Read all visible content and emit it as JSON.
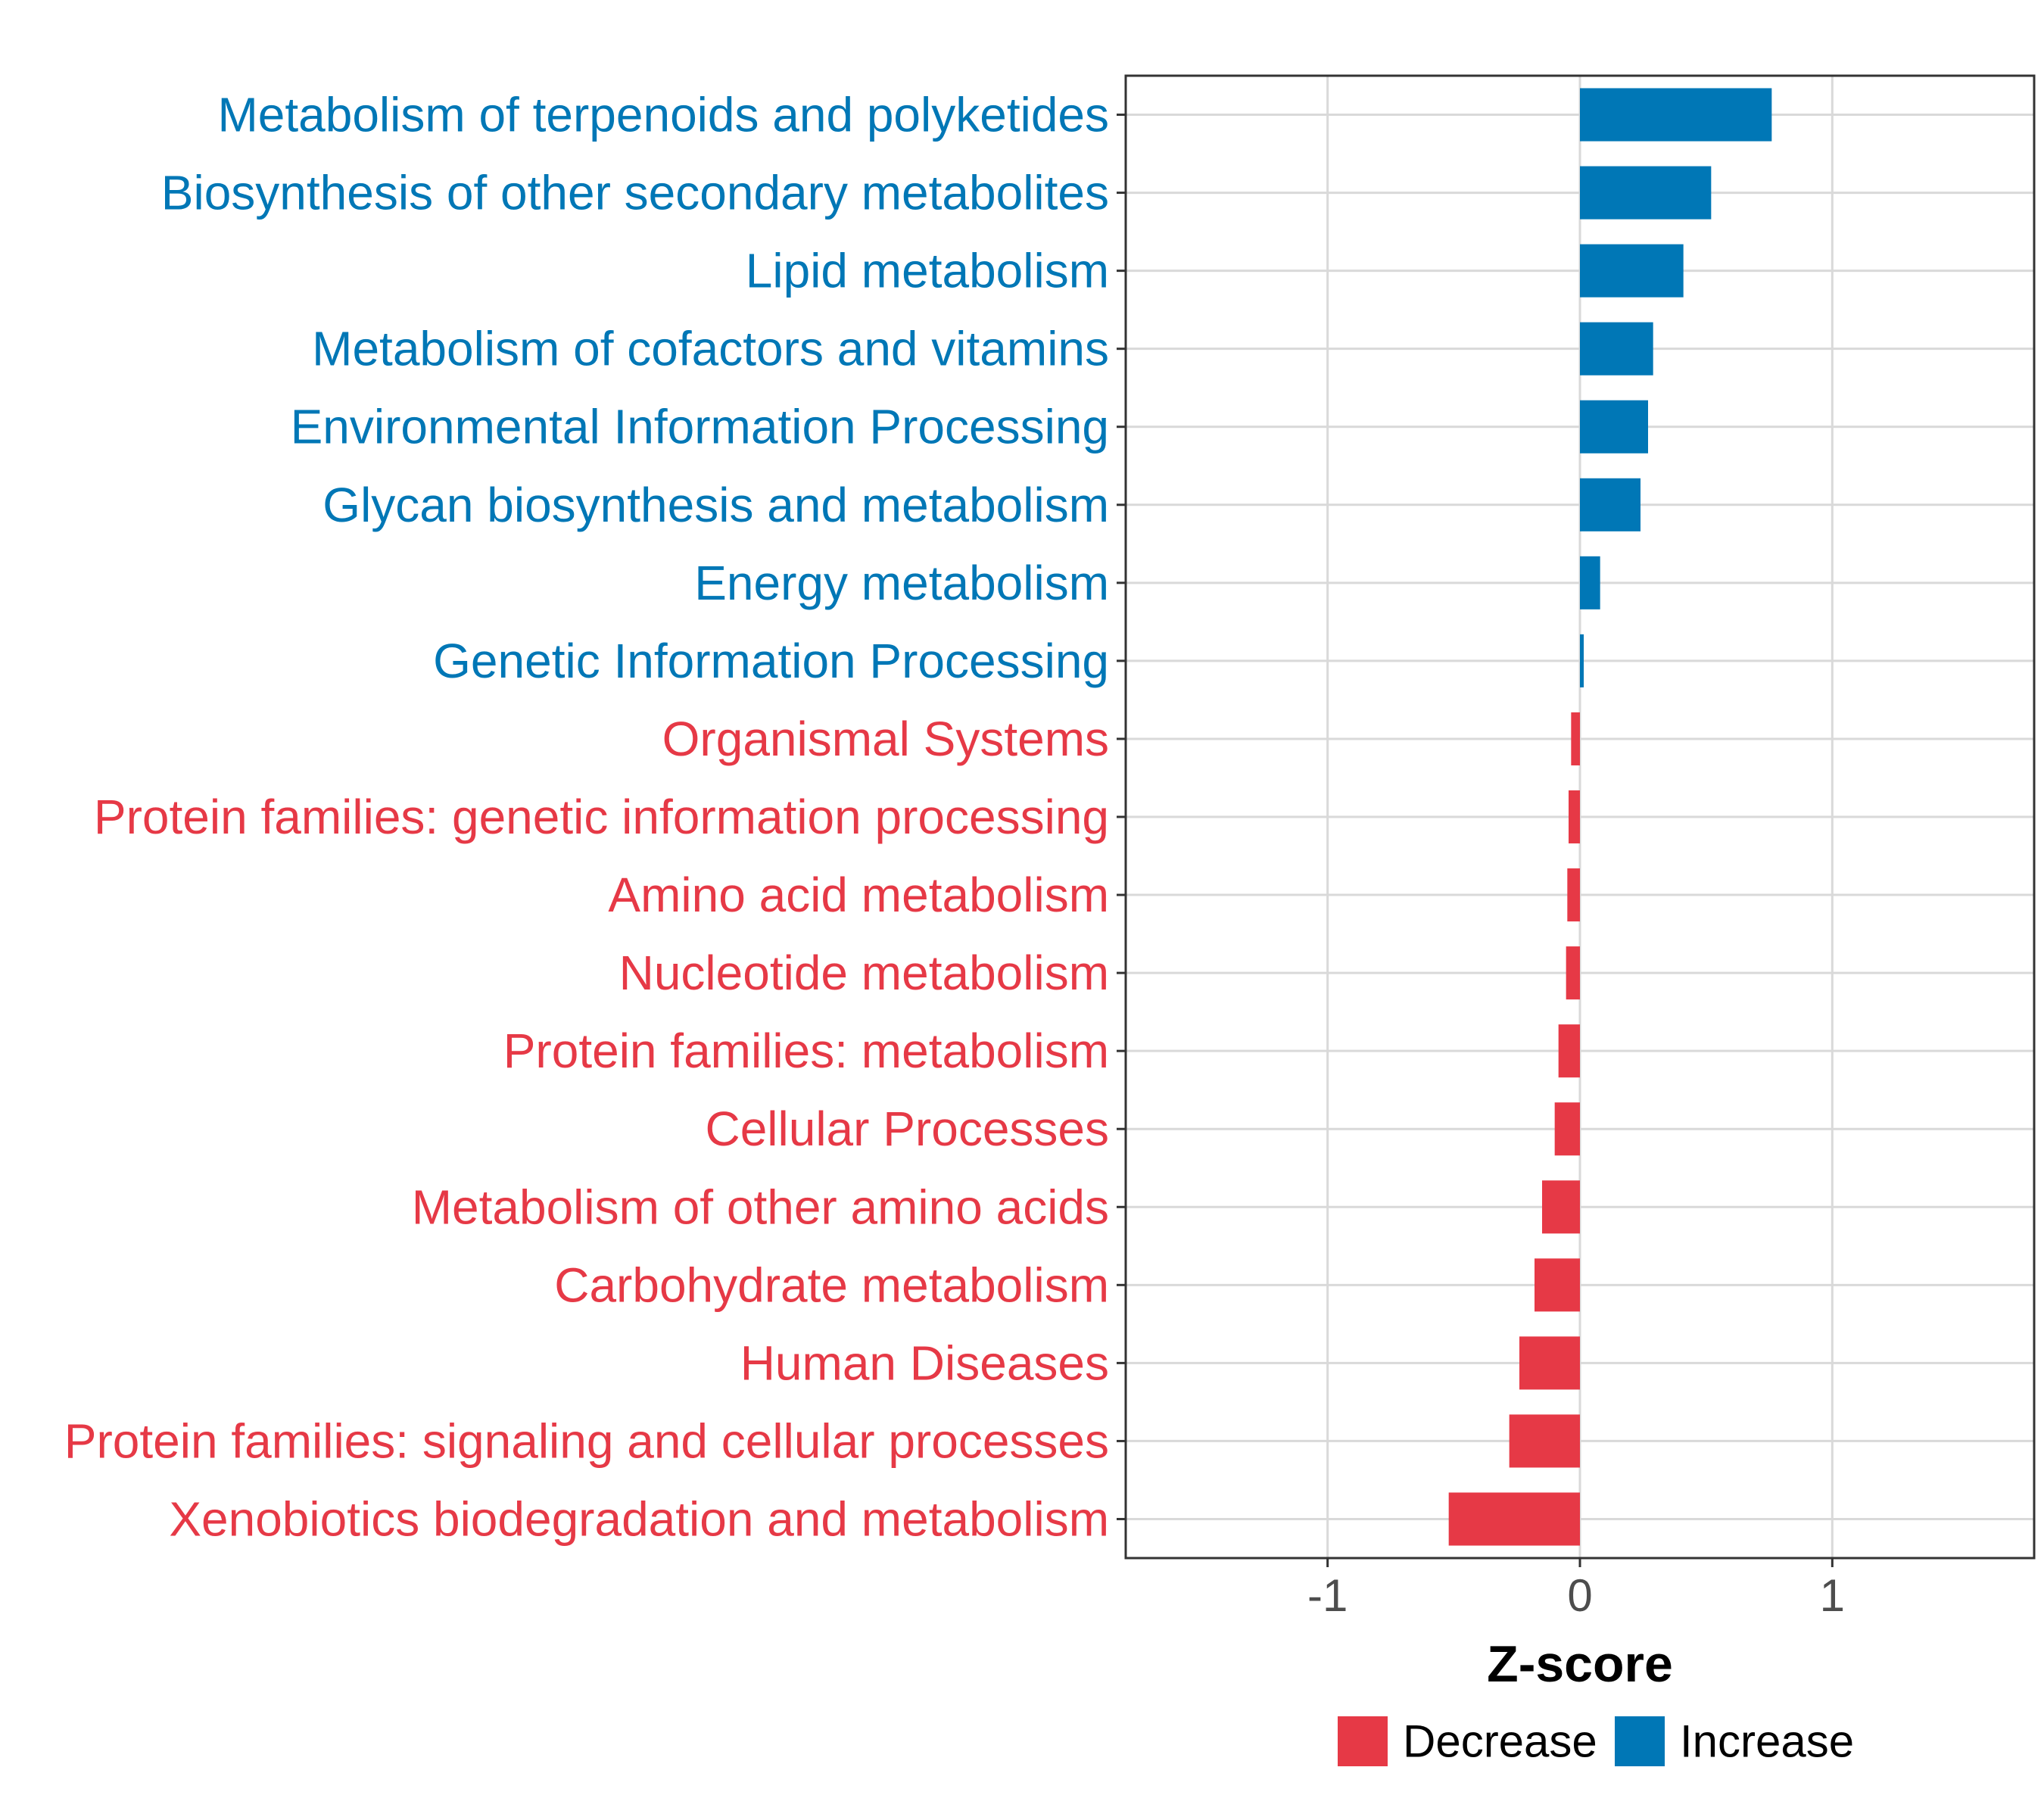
{
  "chart_data": {
    "type": "bar",
    "orientation": "horizontal",
    "xlabel": "Z-score",
    "ylabel": "",
    "xlim": [
      -1.8,
      1.8
    ],
    "x_ticks": [
      -1,
      0,
      1
    ],
    "x_tick_labels": [
      "-1",
      "0",
      "1"
    ],
    "colors": {
      "Decrease": "#e63946",
      "Increase": "#0077b6"
    },
    "legend": {
      "position": "bottom",
      "entries": [
        {
          "label": "Decrease",
          "color": "#e63946"
        },
        {
          "label": "Increase",
          "color": "#0077b6"
        }
      ]
    },
    "categories": [
      "Metabolism of terpenoids and polyketides",
      "Biosynthesis of other secondary metabolites",
      "Lipid metabolism",
      "Metabolism of cofactors and vitamins",
      "Environmental Information Processing",
      "Glycan biosynthesis and metabolism",
      "Energy metabolism",
      "Genetic Information Processing",
      "Organismal Systems",
      "Protein families: genetic information processing",
      "Amino acid metabolism",
      "Nucleotide metabolism",
      "Protein families: metabolism",
      "Cellular Processes",
      "Metabolism of other amino acids",
      "Carbohydrate metabolism",
      "Human Diseases",
      "Protein families: signaling and cellular processes",
      "Xenobiotics biodegradation and metabolism"
    ],
    "values": [
      0.76,
      0.52,
      0.41,
      0.29,
      0.27,
      0.24,
      0.08,
      0.015,
      -0.035,
      -0.045,
      -0.05,
      -0.055,
      -0.085,
      -0.1,
      -0.15,
      -0.18,
      -0.24,
      -0.28,
      -0.52
    ],
    "direction": [
      "Increase",
      "Increase",
      "Increase",
      "Increase",
      "Increase",
      "Increase",
      "Increase",
      "Increase",
      "Decrease",
      "Decrease",
      "Decrease",
      "Decrease",
      "Decrease",
      "Decrease",
      "Decrease",
      "Decrease",
      "Decrease",
      "Decrease",
      "Decrease"
    ]
  }
}
